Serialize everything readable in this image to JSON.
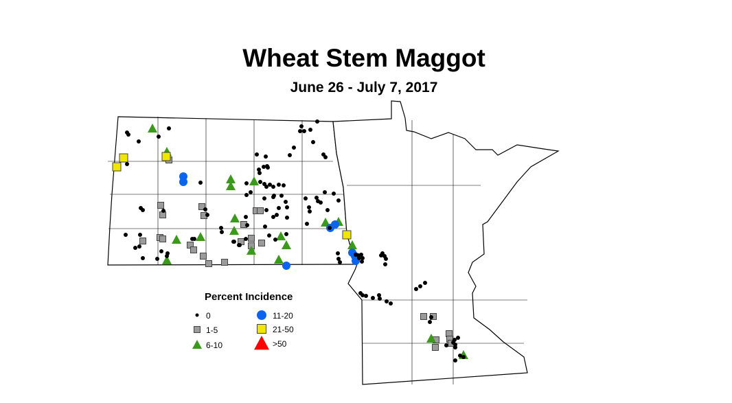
{
  "title": "Wheat Stem Maggot",
  "subtitle": "June 26 - July 7, 2017",
  "legend": {
    "title": "Percent Incidence",
    "items": [
      {
        "key": "c0",
        "label": "0",
        "symbol": "small-dot",
        "color": "#000000"
      },
      {
        "key": "c1",
        "label": "1-5",
        "symbol": "square",
        "color": "#9b9b9b"
      },
      {
        "key": "c2",
        "label": "6-10",
        "symbol": "triangle",
        "color": "#3a9a1a"
      },
      {
        "key": "c3",
        "label": "11-20",
        "symbol": "circle",
        "color": "#0a64f0"
      },
      {
        "key": "c4",
        "label": "21-50",
        "symbol": "square",
        "color": "#f0e600"
      },
      {
        "key": "c5",
        "label": ">50",
        "symbol": "triangle",
        "color": "#ff0000"
      }
    ]
  }
}
